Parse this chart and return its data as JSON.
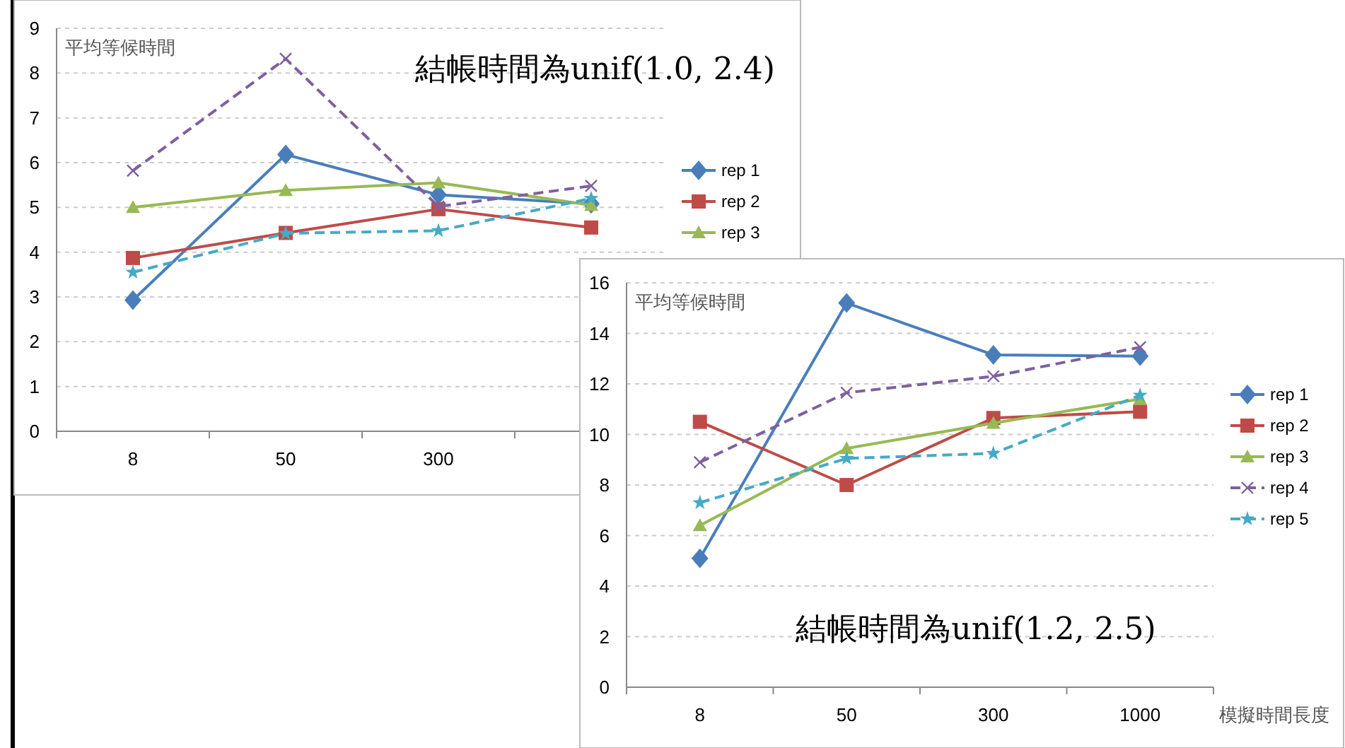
{
  "chart_data": [
    {
      "type": "line",
      "title": "結帳時間為unif(1.0, 2.4)",
      "ylabel": "平均等候時間",
      "categories": [
        "8",
        "50",
        "300",
        null
      ],
      "ylim": [
        0,
        9
      ],
      "yticks": [
        0,
        1,
        2,
        3,
        4,
        5,
        6,
        7,
        8,
        9
      ],
      "grid": "y",
      "legend": "right",
      "series": [
        {
          "name": "rep 1",
          "color": "#4a7ebb",
          "marker": "diamond",
          "line_style": "solid",
          "values": [
            2.93,
            6.18,
            5.28,
            5.08
          ]
        },
        {
          "name": "rep 2",
          "color": "#be4b48",
          "marker": "square",
          "line_style": "solid",
          "values": [
            3.87,
            4.43,
            4.96,
            4.55
          ]
        },
        {
          "name": "rep 3",
          "color": "#98b954",
          "marker": "triangle",
          "line_style": "solid",
          "values": [
            5.0,
            5.38,
            5.55,
            5.05
          ]
        },
        {
          "color": "#7d60a0",
          "marker": "cross",
          "line_style": "dashed",
          "values": [
            5.82,
            8.32,
            5.02,
            5.48
          ]
        },
        {
          "color": "#46aac5",
          "marker": "star",
          "line_style": "dashed",
          "values": [
            3.55,
            4.42,
            4.48,
            5.2
          ]
        }
      ]
    },
    {
      "type": "line",
      "title": "結帳時間為unif(1.2, 2.5)",
      "ylabel": "平均等候時間",
      "xlabel": "模擬時間長度",
      "categories": [
        "8",
        "50",
        "300",
        "1000"
      ],
      "ylim": [
        0,
        16
      ],
      "yticks": [
        0,
        2,
        4,
        6,
        8,
        10,
        12,
        14,
        16
      ],
      "grid": "y",
      "legend": "right",
      "series": [
        {
          "name": "rep 1",
          "color": "#4a7ebb",
          "marker": "diamond",
          "line_style": "solid",
          "values": [
            5.1,
            15.2,
            13.15,
            13.1
          ]
        },
        {
          "name": "rep 2",
          "color": "#be4b48",
          "marker": "square",
          "line_style": "solid",
          "values": [
            10.5,
            8.0,
            10.65,
            10.9
          ]
        },
        {
          "name": "rep 3",
          "color": "#98b954",
          "marker": "triangle",
          "line_style": "solid",
          "values": [
            6.4,
            9.45,
            10.45,
            11.4
          ]
        },
        {
          "name": "rep 4",
          "color": "#7d60a0",
          "marker": "cross",
          "line_style": "dashed",
          "values": [
            8.9,
            11.65,
            12.3,
            13.45
          ]
        },
        {
          "name": "rep 5",
          "color": "#46aac5",
          "marker": "star",
          "line_style": "dashed",
          "values": [
            7.3,
            9.05,
            9.25,
            11.55
          ]
        }
      ]
    }
  ]
}
